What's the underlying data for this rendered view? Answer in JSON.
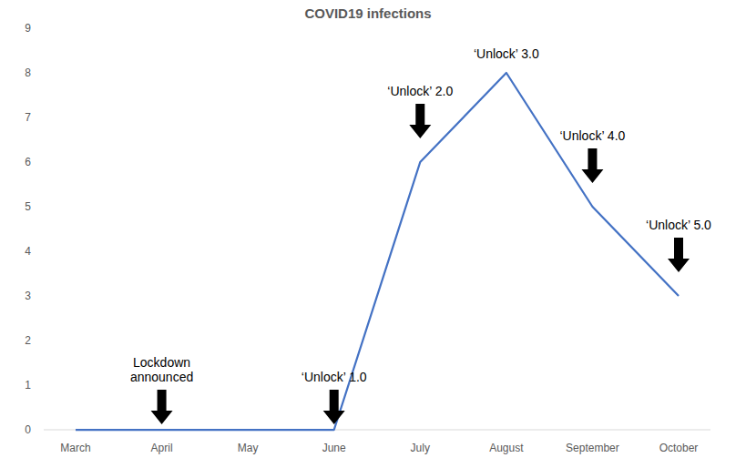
{
  "chart_data": {
    "type": "line",
    "title": "COVID19 infections",
    "categories": [
      "March",
      "April",
      "May",
      "June",
      "July",
      "August",
      "September",
      "October"
    ],
    "values": [
      0,
      0,
      0,
      0,
      6,
      8,
      5,
      3
    ],
    "color": "#4472c4",
    "ylim": [
      0,
      9
    ],
    "yticks": [
      0,
      1,
      2,
      3,
      4,
      5,
      6,
      7,
      8,
      9
    ],
    "grid": false,
    "annotations": [
      {
        "text": "Lockdown\nannounced",
        "x": "April"
      },
      {
        "text": "‘Unlock’ 1.0",
        "x": "June"
      },
      {
        "text": "‘Unlock’ 2.0",
        "x": "July"
      },
      {
        "text": "‘Unlock’ 3.0",
        "x": "August"
      },
      {
        "text": "‘Unlock’ 4.0",
        "x": "September"
      },
      {
        "text": "‘Unlock’ 5.0",
        "x": "October"
      }
    ]
  }
}
